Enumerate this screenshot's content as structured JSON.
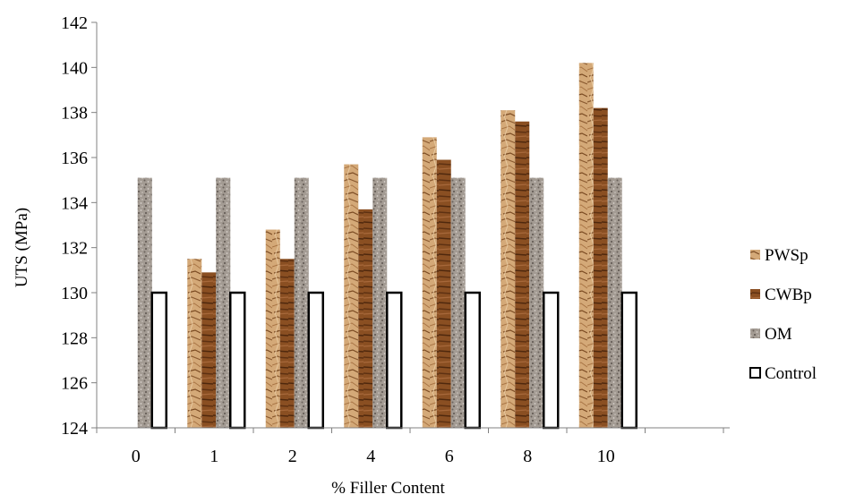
{
  "chart_data": {
    "type": "bar",
    "categories": [
      "0",
      "1",
      "2",
      "4",
      "6",
      "8",
      "10"
    ],
    "xlabel": "% Filler Content",
    "ylabel": "UTS (MPa)",
    "ylim": [
      124,
      142
    ],
    "yticks": [
      124,
      126,
      128,
      130,
      132,
      134,
      136,
      138,
      140,
      142
    ],
    "grid": false,
    "legend_position": "right",
    "series": [
      {
        "name": "PWSp",
        "values": [
          null,
          131.5,
          132.8,
          135.7,
          136.9,
          138.1,
          140.2
        ],
        "color": "#c99a6a",
        "pattern": "crumpled-paper"
      },
      {
        "name": "CWBp",
        "values": [
          null,
          130.9,
          131.5,
          133.7,
          135.9,
          137.6,
          138.2
        ],
        "color": "#8a4f22",
        "pattern": "wood-grain"
      },
      {
        "name": "OM",
        "values": [
          135.1,
          135.1,
          135.1,
          135.1,
          135.1,
          135.1,
          135.1
        ],
        "color": "#a39b93",
        "pattern": "granite"
      },
      {
        "name": "Control",
        "values": [
          130.0,
          130.0,
          130.0,
          130.0,
          130.0,
          130.0,
          130.0
        ],
        "color": "#ffffff",
        "pattern": "none"
      }
    ]
  }
}
